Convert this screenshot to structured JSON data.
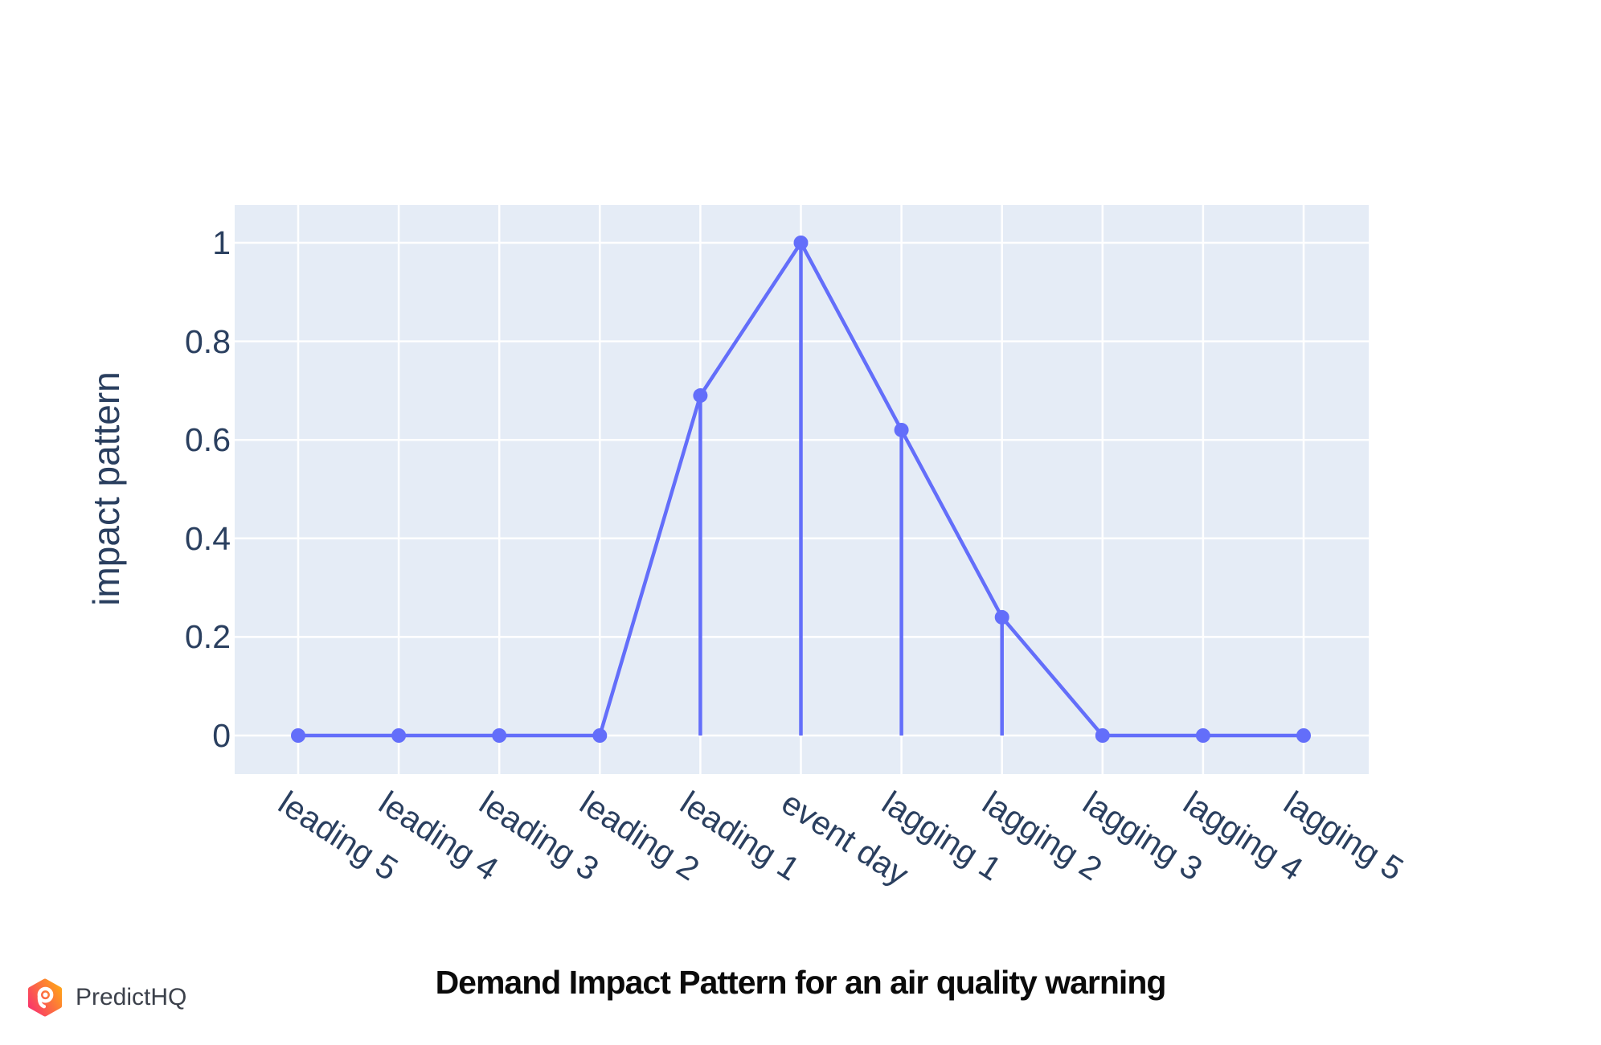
{
  "caption": {
    "title": "Demand Impact Pattern for an air quality warning"
  },
  "branding": {
    "logo_text": "PredictHQ"
  },
  "colors": {
    "line": "#636EFA",
    "plot_background": "#E5ECF6",
    "grid": "#FFFFFF",
    "tick_text": "#2A3F5F",
    "caption_text": "#0B0B0B",
    "logo_gradient_pink": "#F9386A",
    "logo_gradient_orange": "#FFA01B",
    "logo_text_color": "#3C414B"
  },
  "chart_data": {
    "type": "line",
    "title": "",
    "xlabel": "",
    "ylabel": "impact pattern",
    "categories": [
      "leading 5",
      "leading 4",
      "leading 3",
      "leading 2",
      "leading 1",
      "event day",
      "lagging 1",
      "lagging 2",
      "lagging 3",
      "lagging 4",
      "lagging 5"
    ],
    "values": [
      0,
      0,
      0,
      0,
      0.69,
      1,
      0.62,
      0.24,
      0,
      0,
      0
    ],
    "stems_at": [
      "leading 1",
      "event day",
      "lagging 1",
      "lagging 2"
    ],
    "yticks": {
      "values": [
        0,
        0.2,
        0.4,
        0.6,
        0.8,
        1
      ],
      "labels": [
        "0",
        "0.2",
        "0.4",
        "0.6",
        "0.8",
        "1"
      ]
    },
    "ylim": [
      -0.08,
      1.08
    ],
    "grid": true,
    "legend": "none",
    "marker_size": 9,
    "line_color": "#636EFA",
    "marker_color": "#636EFA",
    "plot_bg_color": "#E5ECF6",
    "grid_color": "#FFFFFF",
    "tick_label_color": "#2A3F5F"
  }
}
